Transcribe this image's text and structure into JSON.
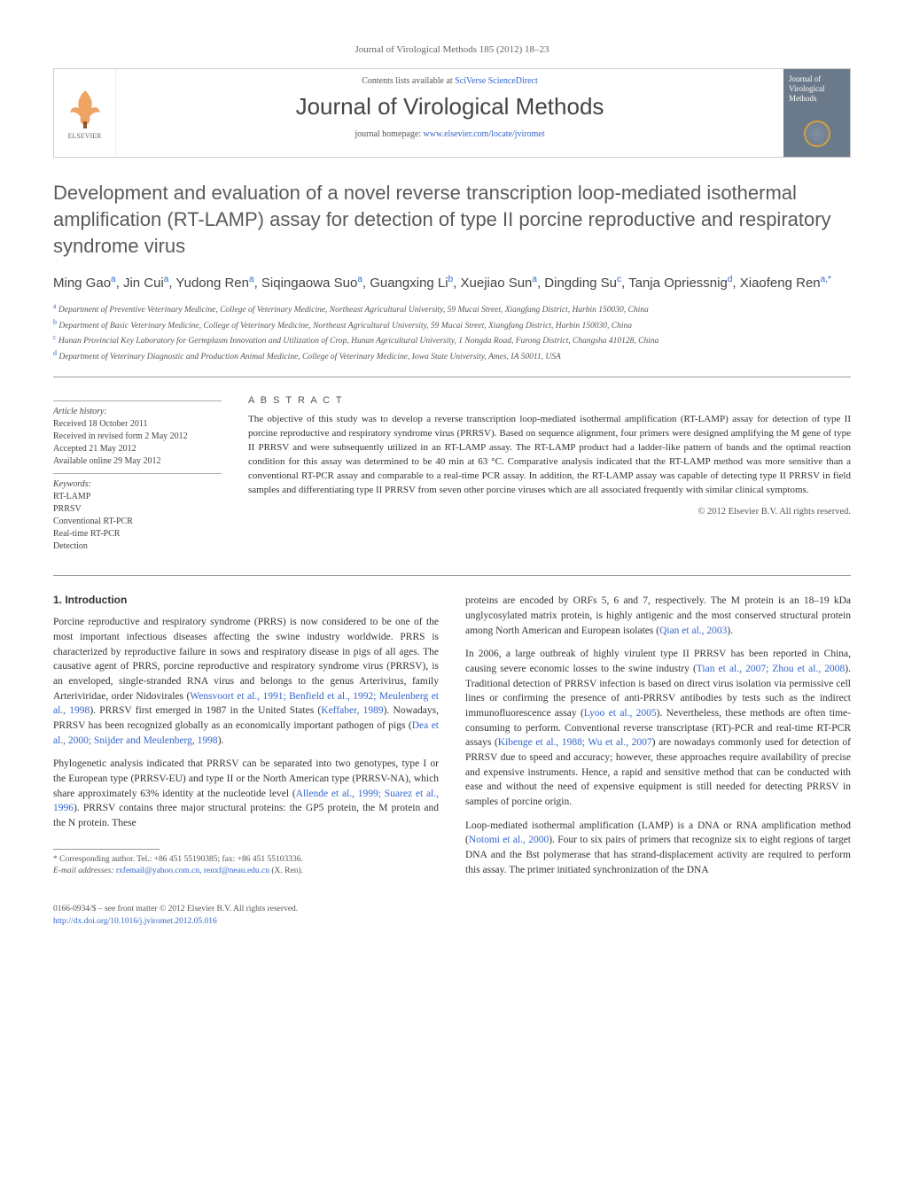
{
  "journal_ref": "Journal of Virological Methods 185 (2012) 18–23",
  "header": {
    "contents_prefix": "Contents lists available at ",
    "contents_link": "SciVerse ScienceDirect",
    "journal_name": "Journal of Virological Methods",
    "homepage_prefix": "journal homepage: ",
    "homepage_link": "www.elsevier.com/locate/jviromet",
    "elsevier_label": "ELSEVIER",
    "cover_title": "Journal of Virological Methods"
  },
  "title": "Development and evaluation of a novel reverse transcription loop-mediated isothermal amplification (RT-LAMP) assay for detection of type II porcine reproductive and respiratory syndrome virus",
  "authors_html": "Ming Gao<sup>a</sup>, Jin Cui<sup>a</sup>, Yudong Ren<sup>a</sup>, Siqingaowa Suo<sup>a</sup>, Guangxing Li<sup>b</sup>, Xuejiao Sun<sup>a</sup>, Dingding Su<sup>c</sup>, Tanja Opriessnig<sup>d</sup>, Xiaofeng Ren<sup>a,*</sup>",
  "affiliations": [
    {
      "sup": "a",
      "text": "Department of Preventive Veterinary Medicine, College of Veterinary Medicine, Northeast Agricultural University, 59 Mucai Street, Xiangfang District, Harbin 150030, China"
    },
    {
      "sup": "b",
      "text": "Department of Basic Veterinary Medicine, College of Veterinary Medicine, Northeast Agricultural University, 59 Mucai Street, Xiangfang District, Harbin 150030, China"
    },
    {
      "sup": "c",
      "text": "Hunan Provincial Key Laboratory for Germplasm Innovation and Utilization of Crop, Hunan Agricultural University, 1 Nongda Road, Furong District, Changsha 410128, China"
    },
    {
      "sup": "d",
      "text": "Department of Veterinary Diagnostic and Production Animal Medicine, College of Veterinary Medicine, Iowa State University, Ames, IA 50011, USA"
    }
  ],
  "article_info": {
    "history_heading": "Article history:",
    "history": [
      "Received 18 October 2011",
      "Received in revised form 2 May 2012",
      "Accepted 21 May 2012",
      "Available online 29 May 2012"
    ],
    "keywords_heading": "Keywords:",
    "keywords": [
      "RT-LAMP",
      "PRRSV",
      "Conventional RT-PCR",
      "Real-time RT-PCR",
      "Detection"
    ]
  },
  "abstract": {
    "heading": "A B S T R A C T",
    "text": "The objective of this study was to develop a reverse transcription loop-mediated isothermal amplification (RT-LAMP) assay for detection of type II porcine reproductive and respiratory syndrome virus (PRRSV). Based on sequence alignment, four primers were designed amplifying the M gene of type II PRRSV and were subsequently utilized in an RT-LAMP assay. The RT-LAMP product had a ladder-like pattern of bands and the optimal reaction condition for this assay was determined to be 40 min at 63 °C. Comparative analysis indicated that the RT-LAMP method was more sensitive than a conventional RT-PCR assay and comparable to a real-time PCR assay. In addition, the RT-LAMP assay was capable of detecting type II PRRSV in field samples and differentiating type II PRRSV from seven other porcine viruses which are all associated frequently with similar clinical symptoms.",
    "copyright": "© 2012 Elsevier B.V. All rights reserved."
  },
  "body": {
    "section_heading": "1. Introduction",
    "left": [
      "Porcine reproductive and respiratory syndrome (PRRS) is now considered to be one of the most important infectious diseases affecting the swine industry worldwide. PRRS is characterized by reproductive failure in sows and respiratory disease in pigs of all ages. The causative agent of PRRS, porcine reproductive and respiratory syndrome virus (PRRSV), is an enveloped, single-stranded RNA virus and belongs to the genus Arterivirus, family Arteriviridae, order Nidovirales (<a>Wensvoort et al., 1991; Benfield et al., 1992; Meulenberg et al., 1998</a>). PRRSV first emerged in 1987 in the United States (<a>Keffaber, 1989</a>). Nowadays, PRRSV has been recognized globally as an economically important pathogen of pigs (<a>Dea et al., 2000; Snijder and Meulenberg, 1998</a>).",
      "Phylogenetic analysis indicated that PRRSV can be separated into two genotypes, type I or the European type (PRRSV-EU) and type II or the North American type (PRRSV-NA), which share approximately 63% identity at the nucleotide level (<a>Allende et al., 1999; Suarez et al., 1996</a>). PRRSV contains three major structural proteins: the GP5 protein, the M protein and the N protein. These"
    ],
    "right": [
      "proteins are encoded by ORFs 5, 6 and 7, respectively. The M protein is an 18–19 kDa unglycosylated matrix protein, is highly antigenic and the most conserved structural protein among North American and European isolates (<a>Qian et al., 2003</a>).",
      "In 2006, a large outbreak of highly virulent type II PRRSV has been reported in China, causing severe economic losses to the swine industry (<a>Tian et al., 2007; Zhou et al., 2008</a>). Traditional detection of PRRSV infection is based on direct virus isolation via permissive cell lines or confirming the presence of anti-PRRSV antibodies by tests such as the indirect immunofluorescence assay (<a>Lyoo et al., 2005</a>). Nevertheless, these methods are often time-consuming to perform. Conventional reverse transcriptase (RT)-PCR and real-time RT-PCR assays (<a>Kibenge et al., 1988; Wu et al., 2007</a>) are nowadays commonly used for detection of PRRSV due to speed and accuracy; however, these approaches require availability of precise and expensive instruments. Hence, a rapid and sensitive method that can be conducted with ease and without the need of expensive equipment is still needed for detecting PRRSV in samples of porcine origin.",
      "Loop-mediated isothermal amplification (LAMP) is a DNA or RNA amplification method (<a>Notomi et al., 2000</a>). Four to six pairs of primers that recognize six to eight regions of target DNA and the Bst polymerase that has strand-displacement activity are required to perform this assay. The primer initiated synchronization of the DNA"
    ]
  },
  "footnote": {
    "corr": "* Corresponding author. Tel.: +86 451 55190385; fax: +86 451 55103336.",
    "email_label": "E-mail addresses: ",
    "emails": "rxfemail@yahoo.com.cn, renxf@neau.edu.cn",
    "email_suffix": " (X. Ren)."
  },
  "footer": {
    "issn": "0166-0934/$ – see front matter © 2012 Elsevier B.V. All rights reserved.",
    "doi": "http://dx.doi.org/10.1016/j.jviromet.2012.05.016"
  },
  "colors": {
    "link": "#3366cc",
    "heading_gray": "#5a5a5a",
    "cover_bg": "#6b7a8a",
    "cover_ring": "#d4a040"
  }
}
